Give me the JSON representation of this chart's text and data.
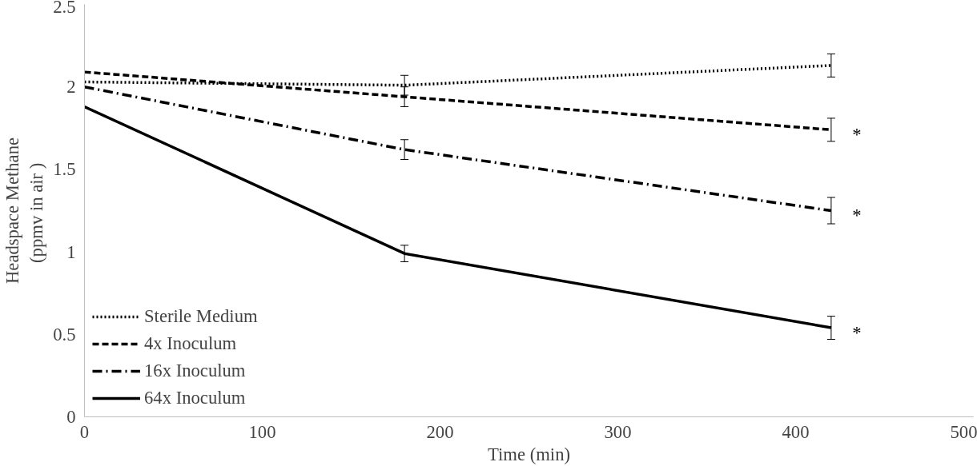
{
  "chart_data": {
    "type": "line",
    "xlabel": "Time (min)",
    "ylabel": "Headspace Methane\n(ppmv in  air )",
    "x": [
      0,
      180,
      420
    ],
    "series": [
      {
        "name": "Sterile Medium",
        "color": "#000000",
        "line_style": "dotted",
        "values": [
          2.03,
          2.01,
          2.13
        ],
        "errors": [
          null,
          0.06,
          0.07
        ]
      },
      {
        "name": "4x Inoculum",
        "color": "#000000",
        "line_style": "dashed",
        "values": [
          2.09,
          1.94,
          1.74
        ],
        "errors": [
          null,
          0.06,
          0.07
        ]
      },
      {
        "name": "16x Inoculum",
        "color": "#000000",
        "line_style": "dashdot",
        "values": [
          2.0,
          1.62,
          1.25
        ],
        "errors": [
          null,
          0.06,
          0.08
        ]
      },
      {
        "name": "64x Inoculum",
        "color": "#000000",
        "line_style": "solid",
        "values": [
          1.88,
          0.99,
          0.54
        ],
        "errors": [
          null,
          0.05,
          0.07
        ]
      }
    ],
    "annotations": [
      "*",
      "*",
      "*"
    ],
    "xlim": [
      0,
      500
    ],
    "xticks": [
      0,
      100,
      200,
      300,
      400,
      500
    ],
    "ylim": [
      0,
      2.5
    ],
    "yticks": [
      0,
      0.5,
      1,
      1.5,
      2,
      2.5
    ],
    "grid": false,
    "legend": "bottom left",
    "marker": "none"
  }
}
